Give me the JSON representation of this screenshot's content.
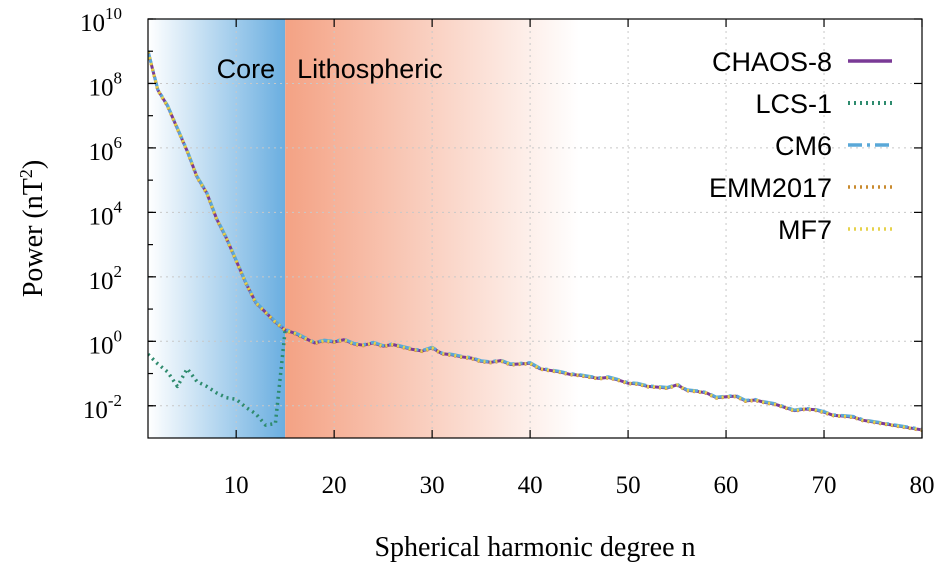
{
  "chart_data": {
    "type": "line",
    "xlabel": "Spherical harmonic degree n",
    "ylabel": "Power (nT",
    "ylabel_sup": "2",
    "ylabel_end": ")",
    "xlim": [
      1,
      80
    ],
    "ylim_log10": [
      -3,
      10
    ],
    "y_scale": "log",
    "grid": true,
    "legend_position": "top-right",
    "x_ticks": [
      10,
      20,
      30,
      40,
      50,
      60,
      70,
      80
    ],
    "y_ticks": [
      {
        "base": "10",
        "exp": "10",
        "log": 10
      },
      {
        "base": "10",
        "exp": "8",
        "log": 8
      },
      {
        "base": "10",
        "exp": "6",
        "log": 6
      },
      {
        "base": "10",
        "exp": "4",
        "log": 4
      },
      {
        "base": "10",
        "exp": "2",
        "log": 2
      },
      {
        "base": "10",
        "exp": "0",
        "log": 0
      },
      {
        "base": "10",
        "exp": "-2",
        "log": -2
      }
    ],
    "regions": [
      {
        "label": "Core",
        "x_start": 1,
        "x_end": 15,
        "color_start": "#ffffff",
        "color_end": "#6aaee0"
      },
      {
        "label": "Lithospheric",
        "x_start": 15,
        "x_end": 45,
        "color_start": "#f4a284",
        "color_end": "#ffffff"
      }
    ],
    "main_model_log10_power": [
      9.0,
      7.8,
      7.3,
      6.6,
      5.9,
      5.1,
      4.6,
      3.8,
      3.2,
      2.5,
      1.8,
      1.2,
      0.9,
      0.6,
      0.35,
      0.25,
      0.1,
      -0.05,
      0.02,
      -0.02,
      0.05,
      -0.08,
      -0.12,
      -0.05,
      -0.15,
      -0.1,
      -0.18,
      -0.25,
      -0.3,
      -0.2,
      -0.38,
      -0.42,
      -0.48,
      -0.52,
      -0.62,
      -0.65,
      -0.6,
      -0.72,
      -0.7,
      -0.68,
      -0.85,
      -0.9,
      -0.95,
      -1.02,
      -1.05,
      -1.1,
      -1.15,
      -1.12,
      -1.2,
      -1.3,
      -1.32,
      -1.4,
      -1.42,
      -1.45,
      -1.35,
      -1.52,
      -1.55,
      -1.6,
      -1.75,
      -1.72,
      -1.7,
      -1.85,
      -1.82,
      -1.9,
      -1.95,
      -2.05,
      -2.15,
      -2.1,
      -2.12,
      -2.2,
      -2.3,
      -2.32,
      -2.35,
      -2.45,
      -2.5,
      -2.55,
      -2.6,
      -2.65,
      -2.7,
      -2.75
    ],
    "lcs1_x": [
      1,
      2,
      3,
      4,
      5,
      6,
      7,
      8,
      9,
      10,
      11,
      12,
      13,
      14,
      15,
      16,
      17
    ],
    "lcs1_log10_power": [
      -0.4,
      -0.7,
      -0.95,
      -1.4,
      -0.85,
      -1.25,
      -1.4,
      -1.6,
      -1.75,
      -1.8,
      -2.05,
      -2.25,
      -2.6,
      -2.55,
      0.35,
      0.25,
      0.1
    ],
    "series": [
      {
        "name": "CHAOS-8",
        "color": "#7a3a96",
        "style": "solid",
        "width": 3
      },
      {
        "name": "LCS-1",
        "color": "#2e8b6e",
        "style": "dotted",
        "width": 3.5
      },
      {
        "name": "CM6",
        "color": "#5aa8d8",
        "style": "dashdot",
        "width": 3
      },
      {
        "name": "EMM2017",
        "color": "#c98a2e",
        "style": "dotted",
        "width": 3
      },
      {
        "name": "MF7",
        "color": "#e6d24a",
        "style": "dotted",
        "width": 3
      }
    ]
  }
}
